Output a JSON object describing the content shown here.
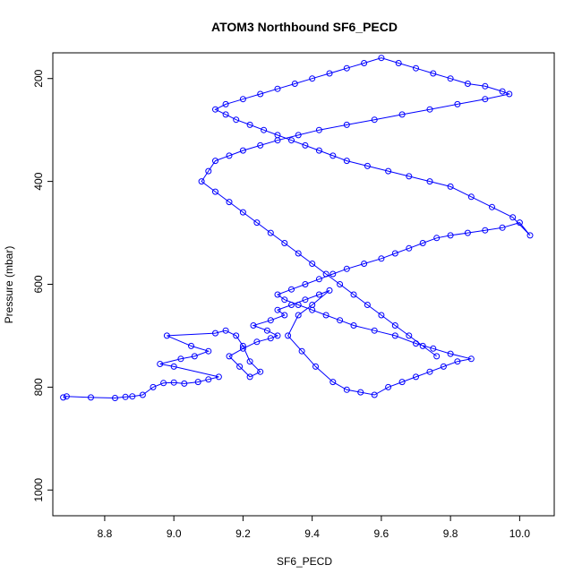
{
  "chart_data": {
    "type": "line",
    "title": "ATOM3 Northbound SF6_PECD",
    "xlabel": "SF6_PECD",
    "ylabel": "Pressure (mbar)",
    "xlim": [
      8.65,
      10.1
    ],
    "ylim": [
      1050,
      150
    ],
    "y_reversed": true,
    "grid": false,
    "x_ticks": [
      8.8,
      9.0,
      9.2,
      9.4,
      9.6,
      9.8,
      10.0
    ],
    "x_tick_labels": [
      "8.8",
      "9.0",
      "9.2",
      "9.4",
      "9.6",
      "9.8",
      "10.0"
    ],
    "y_ticks": [
      200,
      400,
      600,
      800,
      1000
    ],
    "y_tick_labels": [
      "200",
      "400",
      "600",
      "800",
      "1000"
    ],
    "series_color": "#0000ff",
    "marker": "open-circle",
    "series": [
      {
        "x": [
          8.68,
          8.69,
          8.76,
          8.83,
          8.86,
          8.88,
          8.91,
          8.94,
          8.97,
          9.0,
          9.03,
          9.07,
          9.1,
          9.13,
          9.0,
          8.96,
          9.02,
          9.06,
          9.1,
          9.05,
          8.98,
          9.12,
          9.15,
          9.18,
          9.2,
          9.22,
          9.25,
          9.22,
          9.19,
          9.16,
          9.2,
          9.24,
          9.28,
          9.3,
          9.27,
          9.23,
          9.28,
          9.32,
          9.3,
          9.34,
          9.38,
          9.42,
          9.45,
          9.4,
          9.36,
          9.33,
          9.37,
          9.41,
          9.46,
          9.5,
          9.54,
          9.58,
          9.62,
          9.66,
          9.7,
          9.74,
          9.78,
          9.82,
          9.86,
          9.8,
          9.75,
          9.7,
          9.64,
          9.58,
          9.52,
          9.48,
          9.44,
          9.4,
          9.36,
          9.32,
          9.3,
          9.34,
          9.38,
          9.42,
          9.46,
          9.5,
          9.55,
          9.6,
          9.64,
          9.68,
          9.72,
          9.76,
          9.8,
          9.85,
          9.9,
          9.95,
          10.0,
          10.03,
          9.98,
          9.92,
          9.86,
          9.8,
          9.74,
          9.68,
          9.62,
          9.56,
          9.5,
          9.46,
          9.42,
          9.38,
          9.34,
          9.3,
          9.26,
          9.22,
          9.18,
          9.15,
          9.12,
          9.15,
          9.2,
          9.25,
          9.3,
          9.35,
          9.4,
          9.45,
          9.5,
          9.55,
          9.6,
          9.65,
          9.7,
          9.75,
          9.8,
          9.85,
          9.9,
          9.95,
          9.97,
          9.9,
          9.82,
          9.74,
          9.66,
          9.58,
          9.5,
          9.42,
          9.36,
          9.3,
          9.25,
          9.2,
          9.16,
          9.12,
          9.1,
          9.08,
          9.12,
          9.16,
          9.2,
          9.24,
          9.28,
          9.32,
          9.36,
          9.4,
          9.44,
          9.48,
          9.52,
          9.56,
          9.6,
          9.64,
          9.68,
          9.72,
          9.76
        ],
        "y": [
          820,
          818,
          820,
          821,
          819,
          818,
          815,
          800,
          792,
          791,
          793,
          790,
          785,
          780,
          760,
          755,
          745,
          740,
          730,
          720,
          700,
          695,
          690,
          700,
          720,
          750,
          770,
          780,
          760,
          740,
          725,
          712,
          705,
          700,
          690,
          680,
          670,
          660,
          650,
          640,
          630,
          620,
          612,
          640,
          660,
          700,
          730,
          760,
          790,
          805,
          810,
          815,
          800,
          790,
          780,
          770,
          760,
          750,
          745,
          735,
          725,
          715,
          700,
          690,
          680,
          670,
          660,
          650,
          640,
          630,
          620,
          610,
          600,
          590,
          580,
          570,
          560,
          550,
          540,
          530,
          520,
          510,
          505,
          500,
          495,
          490,
          480,
          505,
          470,
          450,
          430,
          410,
          400,
          390,
          380,
          370,
          360,
          350,
          340,
          330,
          320,
          310,
          300,
          290,
          280,
          270,
          260,
          250,
          240,
          230,
          220,
          210,
          200,
          190,
          180,
          170,
          160,
          170,
          180,
          190,
          200,
          210,
          215,
          225,
          230,
          240,
          250,
          260,
          270,
          280,
          290,
          300,
          310,
          320,
          330,
          340,
          350,
          360,
          380,
          400,
          420,
          440,
          460,
          480,
          500,
          520,
          540,
          560,
          580,
          600,
          620,
          640,
          660,
          680,
          700,
          720,
          740
        ]
      }
    ]
  }
}
